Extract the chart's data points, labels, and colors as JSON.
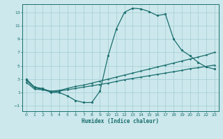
{
  "xlabel": "Humidex (Indice chaleur)",
  "xlim": [
    -0.5,
    23.5
  ],
  "ylim": [
    -1.8,
    14.2
  ],
  "xticks": [
    0,
    1,
    2,
    3,
    4,
    5,
    6,
    7,
    8,
    9,
    10,
    11,
    12,
    13,
    14,
    15,
    16,
    17,
    18,
    19,
    20,
    21,
    22,
    23
  ],
  "yticks": [
    -1,
    1,
    3,
    5,
    7,
    9,
    11,
    13
  ],
  "background_color": "#cce8ec",
  "grid_color": "#aad0d8",
  "line_color": "#1a6e6e",
  "line1_x": [
    0,
    1,
    2,
    3,
    4,
    5,
    6,
    7,
    8,
    9,
    10,
    11,
    12,
    13,
    14,
    15,
    16,
    17,
    18,
    19,
    20,
    21,
    22,
    23
  ],
  "line1_y": [
    3.0,
    1.8,
    1.6,
    1.0,
    1.0,
    0.5,
    -0.2,
    -0.5,
    -0.5,
    1.2,
    6.5,
    10.5,
    13.0,
    13.6,
    13.5,
    13.1,
    12.5,
    12.7,
    9.0,
    7.3,
    6.5,
    5.5,
    4.8,
    4.5
  ],
  "line2_x": [
    0,
    1,
    2,
    3,
    4,
    5,
    6,
    7,
    8,
    9,
    10,
    11,
    12,
    13,
    14,
    15,
    16,
    17,
    18,
    19,
    20,
    21,
    22,
    23
  ],
  "line2_y": [
    2.8,
    1.7,
    1.5,
    1.2,
    1.3,
    1.6,
    1.9,
    2.1,
    2.4,
    2.7,
    3.0,
    3.3,
    3.6,
    3.9,
    4.2,
    4.5,
    4.8,
    5.1,
    5.4,
    5.7,
    6.0,
    6.3,
    6.6,
    7.0
  ],
  "line3_x": [
    0,
    1,
    2,
    3,
    4,
    5,
    6,
    7,
    8,
    9,
    10,
    11,
    12,
    13,
    14,
    15,
    16,
    17,
    18,
    19,
    20,
    21,
    22,
    23
  ],
  "line3_y": [
    2.5,
    1.5,
    1.4,
    1.1,
    1.2,
    1.4,
    1.6,
    1.8,
    2.0,
    2.2,
    2.4,
    2.65,
    2.9,
    3.1,
    3.3,
    3.5,
    3.7,
    3.9,
    4.1,
    4.3,
    4.55,
    4.7,
    4.9,
    5.1
  ]
}
